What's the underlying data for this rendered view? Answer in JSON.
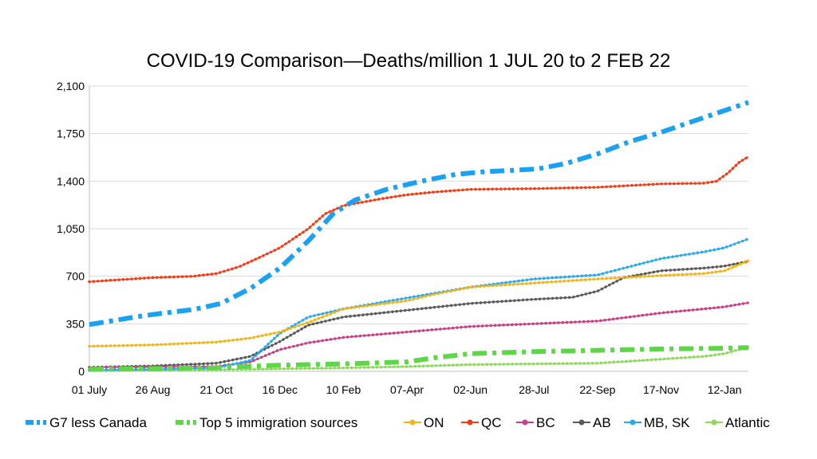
{
  "chart_data": {
    "type": "line",
    "title": "COVID-19 Comparison—Deaths/million 1 JUL 20 to 2 FEB 22",
    "xlabel": "",
    "ylabel": "",
    "ylim": [
      0,
      2100
    ],
    "yticks": [
      "0",
      "350",
      "700",
      "1,050",
      "1,400",
      "1,750",
      "2,100"
    ],
    "ytick_values": [
      0,
      350,
      700,
      1050,
      1400,
      1750,
      2100
    ],
    "x_start": "2020-07-01",
    "x_end": "2022-02-02",
    "xticks": [
      "01 July",
      "26 Aug",
      "21 Oct",
      "16 Dec",
      "10 Feb",
      "07-Apr",
      "02-Jun",
      "28-Jul",
      "22-Sep",
      "17-Nov",
      "12-Jan"
    ],
    "xtick_dates": [
      "2020-07-01",
      "2020-08-26",
      "2020-10-21",
      "2020-12-16",
      "2021-02-10",
      "2021-04-07",
      "2021-06-02",
      "2021-07-28",
      "2021-09-22",
      "2021-11-17",
      "2022-01-12"
    ],
    "grid": true,
    "legend_position": "bottom",
    "series": [
      {
        "name": "G7 less Canada",
        "color": "#1BA1F2",
        "style": "dashdot-thick",
        "points": [
          [
            "2020-07-01",
            345
          ],
          [
            "2020-07-20",
            370
          ],
          [
            "2020-08-10",
            400
          ],
          [
            "2020-09-01",
            425
          ],
          [
            "2020-10-01",
            455
          ],
          [
            "2020-10-25",
            500
          ],
          [
            "2020-11-20",
            610
          ],
          [
            "2020-12-16",
            760
          ],
          [
            "2021-01-10",
            960
          ],
          [
            "2021-02-01",
            1160
          ],
          [
            "2021-02-20",
            1260
          ],
          [
            "2021-03-20",
            1340
          ],
          [
            "2021-04-20",
            1400
          ],
          [
            "2021-05-20",
            1450
          ],
          [
            "2021-06-15",
            1470
          ],
          [
            "2021-07-10",
            1480
          ],
          [
            "2021-07-31",
            1490
          ],
          [
            "2021-08-25",
            1530
          ],
          [
            "2021-09-22",
            1600
          ],
          [
            "2021-10-20",
            1690
          ],
          [
            "2021-11-17",
            1760
          ],
          [
            "2021-12-15",
            1840
          ],
          [
            "2022-01-12",
            1920
          ],
          [
            "2022-02-02",
            1980
          ]
        ]
      },
      {
        "name": "Top 5 immigration sources",
        "color": "#5ED648",
        "style": "dashdot-thick",
        "points": [
          [
            "2020-07-01",
            15
          ],
          [
            "2020-08-26",
            20
          ],
          [
            "2020-10-21",
            25
          ],
          [
            "2020-11-10",
            35
          ],
          [
            "2020-12-16",
            45
          ],
          [
            "2021-02-10",
            55
          ],
          [
            "2021-04-07",
            70
          ],
          [
            "2021-05-01",
            100
          ],
          [
            "2021-06-02",
            130
          ],
          [
            "2021-07-28",
            145
          ],
          [
            "2021-09-22",
            155
          ],
          [
            "2021-11-17",
            165
          ],
          [
            "2022-01-12",
            170
          ],
          [
            "2022-02-02",
            175
          ]
        ]
      },
      {
        "name": "ON",
        "color": "#F2B418",
        "style": "dotted",
        "points": [
          [
            "2020-07-01",
            185
          ],
          [
            "2020-08-26",
            195
          ],
          [
            "2020-10-21",
            215
          ],
          [
            "2020-11-20",
            245
          ],
          [
            "2020-12-16",
            290
          ],
          [
            "2021-01-10",
            360
          ],
          [
            "2021-02-01",
            430
          ],
          [
            "2021-02-10",
            460
          ],
          [
            "2021-04-07",
            520
          ],
          [
            "2021-04-30",
            565
          ],
          [
            "2021-06-02",
            620
          ],
          [
            "2021-07-28",
            650
          ],
          [
            "2021-09-22",
            680
          ],
          [
            "2021-11-17",
            705
          ],
          [
            "2021-12-25",
            720
          ],
          [
            "2022-01-12",
            740
          ],
          [
            "2022-02-02",
            815
          ]
        ]
      },
      {
        "name": "QC",
        "color": "#F53A14",
        "style": "dotted",
        "points": [
          [
            "2020-07-01",
            660
          ],
          [
            "2020-08-26",
            690
          ],
          [
            "2020-09-30",
            700
          ],
          [
            "2020-10-21",
            720
          ],
          [
            "2020-11-10",
            770
          ],
          [
            "2020-12-01",
            850
          ],
          [
            "2020-12-16",
            910
          ],
          [
            "2021-01-10",
            1050
          ],
          [
            "2021-01-25",
            1160
          ],
          [
            "2021-02-10",
            1220
          ],
          [
            "2021-03-15",
            1270
          ],
          [
            "2021-04-07",
            1300
          ],
          [
            "2021-05-01",
            1320
          ],
          [
            "2021-06-02",
            1340
          ],
          [
            "2021-07-28",
            1345
          ],
          [
            "2021-09-22",
            1355
          ],
          [
            "2021-11-17",
            1380
          ],
          [
            "2021-12-25",
            1385
          ],
          [
            "2022-01-05",
            1400
          ],
          [
            "2022-01-15",
            1460
          ],
          [
            "2022-01-25",
            1540
          ],
          [
            "2022-02-02",
            1580
          ]
        ]
      },
      {
        "name": "BC",
        "color": "#C93E85",
        "style": "dotted",
        "points": [
          [
            "2020-07-01",
            30
          ],
          [
            "2020-08-26",
            32
          ],
          [
            "2020-10-21",
            36
          ],
          [
            "2020-11-20",
            70
          ],
          [
            "2020-12-16",
            160
          ],
          [
            "2021-01-10",
            210
          ],
          [
            "2021-02-10",
            250
          ],
          [
            "2021-04-07",
            290
          ],
          [
            "2021-06-02",
            330
          ],
          [
            "2021-07-28",
            350
          ],
          [
            "2021-09-22",
            370
          ],
          [
            "2021-11-17",
            430
          ],
          [
            "2021-12-25",
            460
          ],
          [
            "2022-01-12",
            475
          ],
          [
            "2022-02-02",
            505
          ]
        ]
      },
      {
        "name": "AB",
        "color": "#5A5A5A",
        "style": "dotted",
        "points": [
          [
            "2020-07-01",
            30
          ],
          [
            "2020-08-26",
            40
          ],
          [
            "2020-10-21",
            60
          ],
          [
            "2020-11-20",
            110
          ],
          [
            "2020-12-16",
            220
          ],
          [
            "2021-01-10",
            340
          ],
          [
            "2021-02-10",
            400
          ],
          [
            "2021-04-07",
            450
          ],
          [
            "2021-06-02",
            500
          ],
          [
            "2021-07-28",
            530
          ],
          [
            "2021-08-31",
            545
          ],
          [
            "2021-09-22",
            590
          ],
          [
            "2021-10-15",
            690
          ],
          [
            "2021-11-17",
            740
          ],
          [
            "2021-12-25",
            760
          ],
          [
            "2022-01-12",
            775
          ],
          [
            "2022-02-02",
            810
          ]
        ]
      },
      {
        "name": "MB, SK",
        "color": "#26A9F0",
        "style": "dotted",
        "points": [
          [
            "2020-07-01",
            10
          ],
          [
            "2020-08-26",
            15
          ],
          [
            "2020-10-21",
            25
          ],
          [
            "2020-11-20",
            80
          ],
          [
            "2020-12-16",
            280
          ],
          [
            "2021-01-10",
            400
          ],
          [
            "2021-02-10",
            460
          ],
          [
            "2021-04-07",
            540
          ],
          [
            "2021-06-02",
            620
          ],
          [
            "2021-07-28",
            680
          ],
          [
            "2021-09-22",
            710
          ],
          [
            "2021-10-20",
            770
          ],
          [
            "2021-11-17",
            830
          ],
          [
            "2021-12-25",
            880
          ],
          [
            "2022-01-12",
            910
          ],
          [
            "2022-02-02",
            975
          ]
        ]
      },
      {
        "name": "Atlantic",
        "color": "#8BDB58",
        "style": "dotted",
        "points": [
          [
            "2020-07-01",
            5
          ],
          [
            "2020-08-26",
            8
          ],
          [
            "2020-10-21",
            12
          ],
          [
            "2020-12-16",
            18
          ],
          [
            "2021-02-10",
            25
          ],
          [
            "2021-04-07",
            35
          ],
          [
            "2021-06-02",
            50
          ],
          [
            "2021-07-28",
            55
          ],
          [
            "2021-09-22",
            60
          ],
          [
            "2021-11-17",
            90
          ],
          [
            "2021-12-25",
            110
          ],
          [
            "2022-01-12",
            130
          ],
          [
            "2022-02-02",
            180
          ]
        ]
      }
    ]
  }
}
